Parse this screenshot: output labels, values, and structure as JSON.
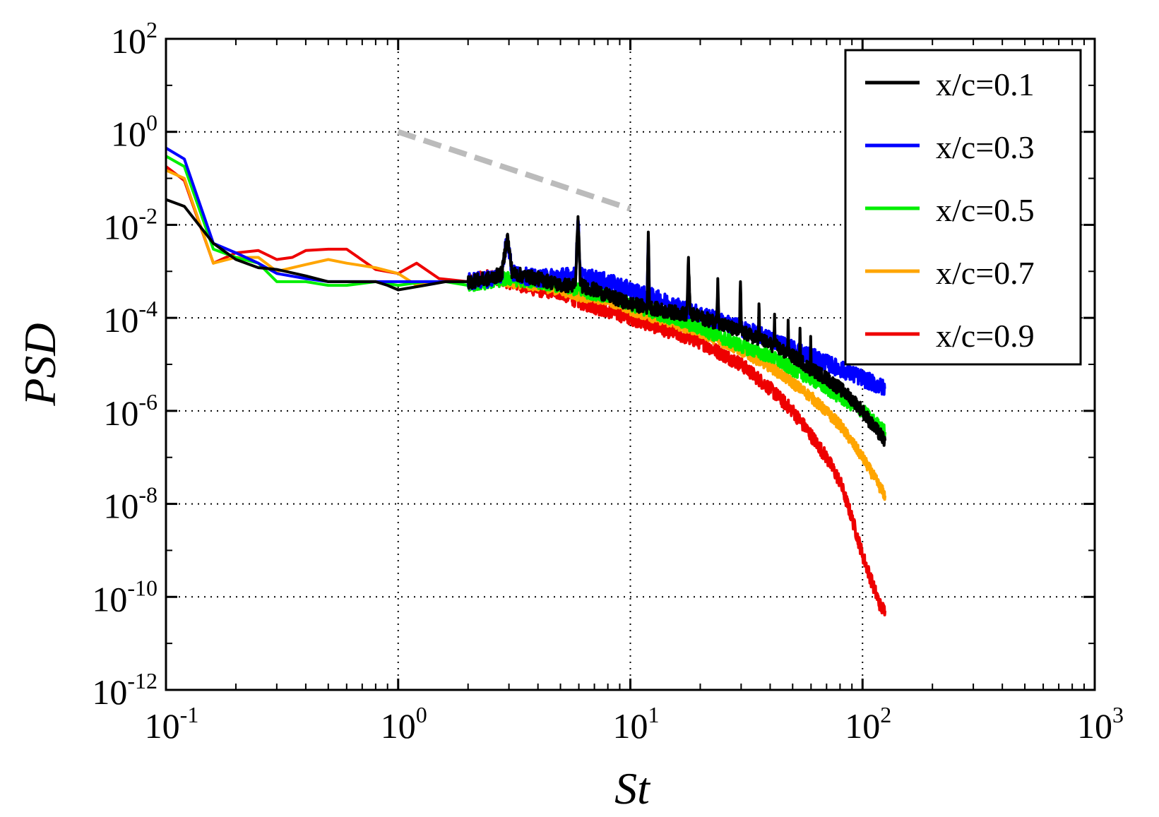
{
  "chart_data": {
    "type": "line",
    "x_scale": "log",
    "y_scale": "log",
    "xlabel": "St",
    "ylabel": "PSD",
    "xlim": [
      0.1,
      1000
    ],
    "ylim": [
      1e-12,
      100
    ],
    "grid": true,
    "grid_style": "dotted",
    "legend_position": "top-right",
    "x_ticks": [
      {
        "base": "10",
        "exp": "-1",
        "value": 0.1
      },
      {
        "base": "10",
        "exp": "0",
        "value": 1
      },
      {
        "base": "10",
        "exp": "1",
        "value": 10
      },
      {
        "base": "10",
        "exp": "2",
        "value": 100
      },
      {
        "base": "10",
        "exp": "3",
        "value": 1000
      }
    ],
    "y_ticks": [
      {
        "base": "10",
        "exp": "2",
        "value": 100
      },
      {
        "base": "10",
        "exp": "0",
        "value": 1
      },
      {
        "base": "10",
        "exp": "-2",
        "value": 0.01
      },
      {
        "base": "10",
        "exp": "-4",
        "value": 0.0001
      },
      {
        "base": "10",
        "exp": "-6",
        "value": 1e-06
      },
      {
        "base": "10",
        "exp": "-8",
        "value": 1e-08
      },
      {
        "base": "10",
        "exp": "-10",
        "value": 1e-10
      },
      {
        "base": "10",
        "exp": "-12",
        "value": 1e-12
      }
    ],
    "reference_line": {
      "name": "slope reference (dashed)",
      "color": "#bbbbbb",
      "x": [
        1,
        10
      ],
      "y": [
        1.0,
        0.022
      ]
    },
    "series": [
      {
        "name": "x/c=0.1",
        "color": "#000000",
        "noise": 0.15,
        "x": [
          0.1,
          0.12,
          0.16,
          0.2,
          0.25,
          0.3,
          0.4,
          0.5,
          0.6,
          0.8,
          0.9,
          1.0,
          1.3,
          1.6,
          2.0,
          2.5,
          2.8,
          2.95,
          3.1,
          3.5,
          4.0,
          4.5,
          5.0,
          5.8,
          5.95,
          6.1,
          7.0,
          8.0,
          10.0,
          11.8,
          11.95,
          12.1,
          14.0,
          17.5,
          17.8,
          18.1,
          23.5,
          23.8,
          24.1,
          29.5,
          29.8,
          30.1,
          35.5,
          35.8,
          36.1,
          41.5,
          41.8,
          42.1,
          47.5,
          47.8,
          48.1,
          53.5,
          53.8,
          54.1,
          59.5,
          59.8,
          60.1,
          70.0,
          80.0,
          90.0,
          100.0,
          110.0,
          125.0
        ],
        "y": [
          0.035,
          0.025,
          0.004,
          0.0018,
          0.0012,
          0.0011,
          0.0008,
          0.0006,
          0.0006,
          0.0006,
          0.0005,
          0.0004,
          0.0005,
          0.0006,
          0.0006,
          0.0007,
          0.0009,
          0.006,
          0.0009,
          0.0008,
          0.0007,
          0.0006,
          0.0005,
          0.0005,
          0.015,
          0.0005,
          0.0004,
          0.0003,
          0.0002,
          0.00017,
          0.007,
          0.00017,
          0.00014,
          0.00012,
          0.002,
          0.00012,
          8e-05,
          0.0007,
          8e-05,
          5e-05,
          0.0006,
          5e-05,
          3.5e-05,
          0.0002,
          3.5e-05,
          2.5e-05,
          0.00012,
          2.5e-05,
          1.7e-05,
          9e-05,
          1.7e-05,
          1.2e-05,
          6e-05,
          1.2e-05,
          8e-06,
          4e-05,
          8e-06,
          5e-06,
          3e-06,
          1.8e-06,
          1e-06,
          5e-07,
          2.3e-07
        ]
      },
      {
        "name": "x/c=0.3",
        "color": "#0000ff",
        "noise": 0.18,
        "x": [
          0.1,
          0.12,
          0.16,
          0.2,
          0.25,
          0.3,
          0.4,
          0.5,
          0.6,
          0.8,
          1.0,
          1.3,
          1.6,
          2.0,
          2.5,
          2.8,
          2.95,
          3.1,
          3.5,
          4.0,
          5.0,
          5.8,
          5.95,
          6.1,
          7.0,
          8.0,
          10.0,
          11.8,
          11.95,
          12.1,
          15.0,
          20.0,
          30.0,
          40.0,
          50.0,
          60.0,
          80.0,
          100.0,
          125.0
        ],
        "y": [
          0.45,
          0.26,
          0.004,
          0.0025,
          0.0015,
          0.0009,
          0.0007,
          0.0006,
          0.0006,
          0.0006,
          0.0006,
          0.0006,
          0.0006,
          0.0006,
          0.0007,
          0.0009,
          0.006,
          0.0009,
          0.0008,
          0.0007,
          0.0008,
          0.0008,
          0.013,
          0.0008,
          0.0007,
          0.0006,
          0.0004,
          0.0003,
          0.0045,
          0.0003,
          0.0002,
          0.00012,
          6e-05,
          3.5e-05,
          2.2e-05,
          1.5e-05,
          8e-06,
          5e-06,
          3e-06
        ]
      },
      {
        "name": "x/c=0.5",
        "color": "#00ee00",
        "noise": 0.15,
        "x": [
          0.1,
          0.12,
          0.16,
          0.2,
          0.25,
          0.3,
          0.4,
          0.5,
          0.6,
          0.8,
          1.0,
          1.3,
          1.6,
          2.0,
          2.5,
          3.0,
          4.0,
          5.0,
          6.0,
          8.0,
          10.0,
          15.0,
          20.0,
          30.0,
          40.0,
          50.0,
          60.0,
          80.0,
          100.0,
          125.0
        ],
        "y": [
          0.3,
          0.18,
          0.003,
          0.002,
          0.0015,
          0.0006,
          0.0006,
          0.0005,
          0.0005,
          0.0006,
          0.0005,
          0.0006,
          0.0006,
          0.0005,
          0.0006,
          0.0007,
          0.0006,
          0.0005,
          0.0004,
          0.0003,
          0.0002,
          0.0001,
          6e-05,
          2.5e-05,
          1.5e-05,
          8e-06,
          5e-06,
          2e-06,
          1e-06,
          3.5e-07
        ]
      },
      {
        "name": "x/c=0.7",
        "color": "#ffa500",
        "noise": 0.12,
        "x": [
          0.1,
          0.12,
          0.16,
          0.2,
          0.25,
          0.3,
          0.4,
          0.5,
          0.6,
          0.8,
          1.0,
          1.2,
          1.5,
          2.0,
          2.5,
          3.0,
          4.0,
          5.0,
          6.0,
          8.0,
          10.0,
          15.0,
          20.0,
          30.0,
          40.0,
          50.0,
          60.0,
          80.0,
          100.0,
          125.0
        ],
        "y": [
          0.15,
          0.1,
          0.0015,
          0.002,
          0.002,
          0.001,
          0.0014,
          0.0018,
          0.0015,
          0.0012,
          0.0009,
          0.0005,
          0.0006,
          0.0006,
          0.0007,
          0.0006,
          0.0005,
          0.0004,
          0.0003,
          0.00025,
          0.00015,
          8e-05,
          5e-05,
          2e-05,
          9e-06,
          4e-06,
          2e-06,
          5e-07,
          1e-07,
          1.5e-08
        ]
      },
      {
        "name": "x/c=0.9",
        "color": "#ee0000",
        "noise": 0.15,
        "x": [
          0.1,
          0.12,
          0.16,
          0.2,
          0.25,
          0.3,
          0.35,
          0.4,
          0.5,
          0.6,
          0.8,
          1.0,
          1.2,
          1.5,
          2.0,
          2.5,
          3.0,
          4.0,
          5.0,
          6.0,
          8.0,
          10.0,
          15.0,
          20.0,
          30.0,
          40.0,
          50.0,
          60.0,
          70.0,
          80.0,
          90.0,
          100.0,
          110.0,
          120.0,
          125.0
        ],
        "y": [
          0.18,
          0.09,
          0.0015,
          0.0025,
          0.0028,
          0.0018,
          0.002,
          0.0028,
          0.003,
          0.003,
          0.0011,
          0.0009,
          0.0015,
          0.0007,
          0.0006,
          0.0008,
          0.0006,
          0.0004,
          0.00035,
          0.00022,
          0.00014,
          0.0001,
          5e-05,
          3e-05,
          1e-05,
          3e-06,
          1e-06,
          3e-07,
          1e-07,
          3e-08,
          5e-09,
          8e-10,
          2e-10,
          6e-11,
          5e-11
        ]
      }
    ]
  }
}
